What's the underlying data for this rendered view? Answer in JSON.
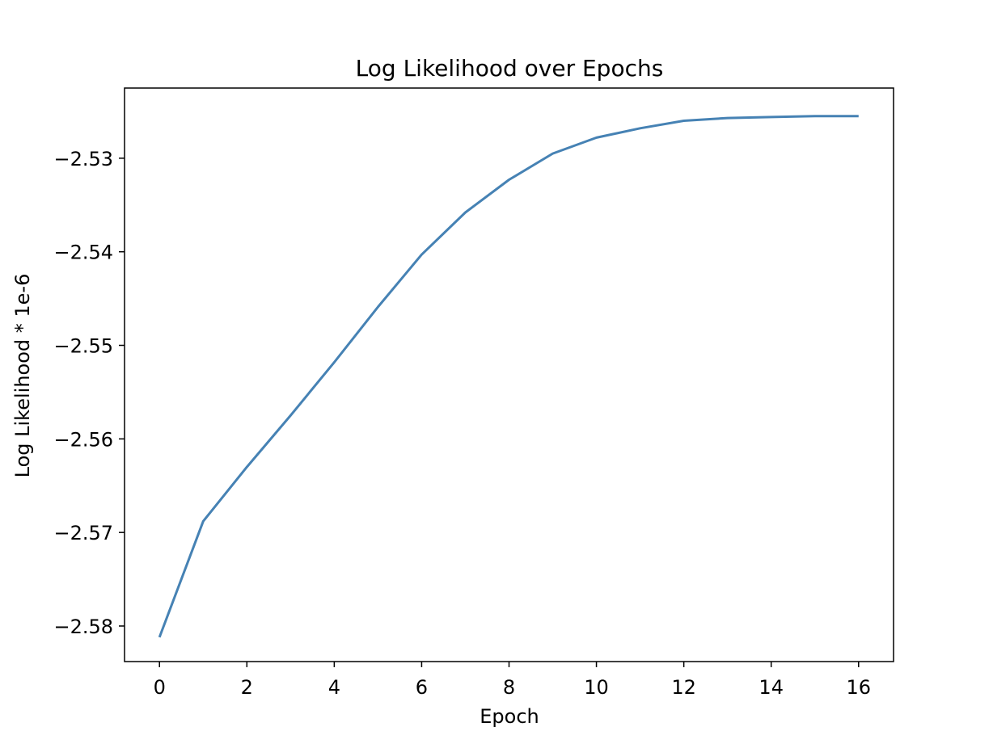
{
  "chart_data": {
    "type": "line",
    "title": "Log Likelihood over Epochs",
    "xlabel": "Epoch",
    "ylabel": "Log Likelihood * 1e-6",
    "xlim": [
      -0.8,
      16.8
    ],
    "ylim": [
      -2.5838,
      -2.5225
    ],
    "x_ticks": [
      0,
      2,
      4,
      6,
      8,
      10,
      12,
      14,
      16
    ],
    "y_ticks": [
      -2.58,
      -2.57,
      -2.56,
      -2.55,
      -2.54,
      -2.53
    ],
    "x_tick_labels": [
      "0",
      "2",
      "4",
      "6",
      "8",
      "10",
      "12",
      "14",
      "16"
    ],
    "y_tick_labels": [
      "−2.58",
      "−2.57",
      "−2.56",
      "−2.55",
      "−2.54",
      "−2.53"
    ],
    "grid": false,
    "series": [
      {
        "color": "#4682b4",
        "x": [
          0,
          1,
          2,
          3,
          4,
          5,
          6,
          7,
          8,
          9,
          10,
          11,
          12,
          13,
          14,
          15,
          16
        ],
        "y": [
          -2.5812,
          -2.5688,
          -2.563,
          -2.5575,
          -2.5518,
          -2.5459,
          -2.5403,
          -2.5358,
          -2.5323,
          -2.5295,
          -2.5278,
          -2.5268,
          -2.526,
          -2.5257,
          -2.5256,
          -2.5255,
          -2.5255
        ]
      }
    ]
  }
}
